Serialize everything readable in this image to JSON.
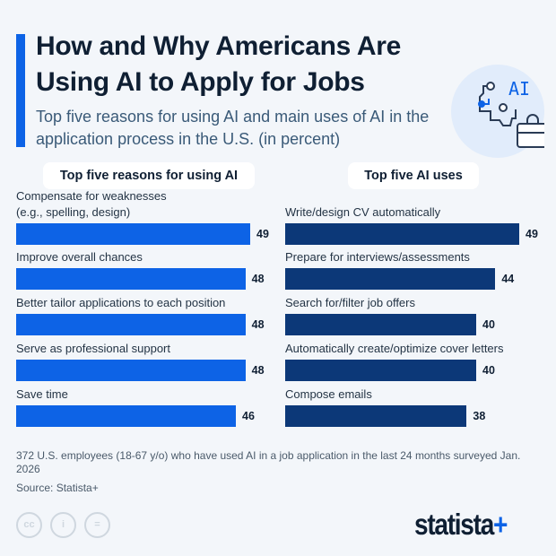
{
  "header": {
    "title": "How and Why Americans Are Using AI to Apply for Jobs",
    "subtitle": "Top five reasons for using AI and main uses of AI in the application process in the U.S. (in percent)",
    "icon": "ai-brain-briefcase-icon",
    "icon_text": "AI"
  },
  "chart_data": [
    {
      "type": "bar",
      "orientation": "horizontal",
      "title": "Top five reasons for using AI",
      "categories": [
        "Compensate for weaknesses (e.g., spelling, design)",
        "Improve overall chances",
        "Better tailor applications to each position",
        "Serve as professional support",
        "Save time"
      ],
      "values": [
        49,
        48,
        48,
        48,
        46
      ],
      "color": "#0d63e6",
      "unit": "percent"
    },
    {
      "type": "bar",
      "orientation": "horizontal",
      "title": "Top five AI uses",
      "categories": [
        "Write/design CV automatically",
        "Prepare for interviews/assessments",
        "Search for/filter job offers",
        "Automatically create/optimize cover letters",
        "Compose emails"
      ],
      "values": [
        49,
        44,
        40,
        40,
        38
      ],
      "color": "#0c3878",
      "unit": "percent"
    }
  ],
  "footer": {
    "note": "372 U.S. employees (18-67 y/o) who have used AI in a job application in the last 24 months surveyed Jan. 2026",
    "source": "Source: Statista+",
    "license_icons": [
      "cc",
      "by",
      "nd"
    ],
    "license_text": [
      "cc",
      "i",
      "="
    ],
    "brand": "statista",
    "brand_plus": "+"
  }
}
